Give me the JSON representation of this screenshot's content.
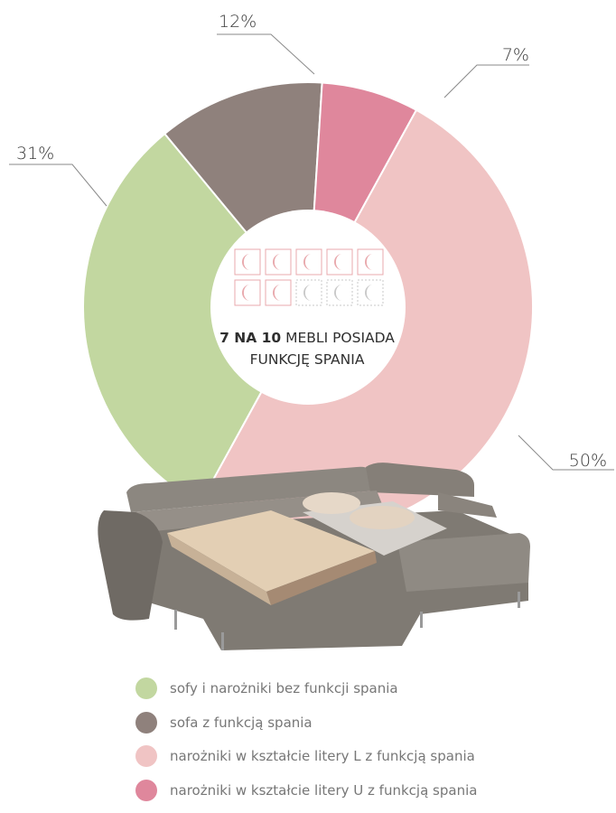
{
  "chart_data": {
    "type": "pie",
    "style": "donut",
    "categories": [
      "sofy i narożniki bez funkcji spania",
      "sofa z funkcją spania",
      "narożniki w kształcie litery L z funkcją spania",
      "narożniki w kształcie litery U z funkcją spania"
    ],
    "values": [
      31,
      12,
      50,
      7
    ],
    "value_labels": [
      "31%",
      "12%",
      "50%",
      "7%"
    ],
    "colors": [
      "#c2d7a0",
      "#8f817c",
      "#f0c4c4",
      "#df879c"
    ],
    "legend_position": "bottom"
  },
  "center": {
    "bold_text": "7 NA 10",
    "text": " MEBLI POSIADA",
    "line2": "FUNKCJĘ SPANIA",
    "icons_total": 10,
    "icons_filled": 7,
    "icon_color_filled": "#e8a8ac",
    "icon_color_empty": "#c8c8c8",
    "icon_name": "moon-icon"
  }
}
